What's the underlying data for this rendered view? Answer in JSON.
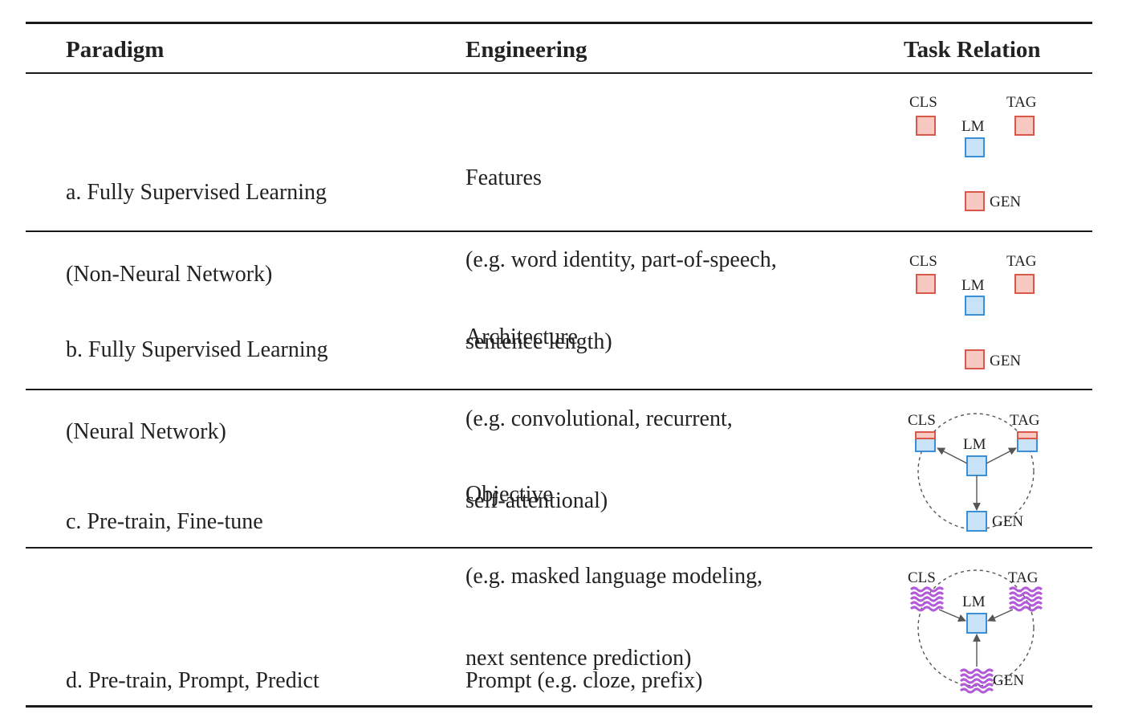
{
  "header": {
    "paradigm": "Paradigm",
    "engineering": "Engineering",
    "task_relation": "Task Relation"
  },
  "rows": [
    {
      "paradigm_line1": "a. Fully Supervised Learning",
      "paradigm_line2": "(Non-Neural Network)",
      "eng_line1": "Features",
      "eng_line2": "(e.g. word identity, part-of-speech,",
      "eng_line3": "sentence length)",
      "diagram": {
        "style": "isolated",
        "cls": "CLS",
        "tag": "TAG",
        "lm": "LM",
        "gen": "GEN"
      }
    },
    {
      "paradigm_line1": "b. Fully Supervised Learning",
      "paradigm_line2": "(Neural Network)",
      "eng_line1": "Architecture",
      "eng_line2": "(e.g. convolutional, recurrent,",
      "eng_line3": "self-attentional)",
      "diagram": {
        "style": "isolated",
        "cls": "CLS",
        "tag": "TAG",
        "lm": "LM",
        "gen": "GEN"
      }
    },
    {
      "paradigm_line1": "c. Pre-train, Fine-tune",
      "eng_line1": "Objective",
      "eng_line2": "(e.g. masked language modeling,",
      "eng_line3": "next sentence prediction)",
      "diagram": {
        "style": "fine-tune",
        "cls": "CLS",
        "tag": "TAG",
        "lm": "LM",
        "gen": "GEN"
      }
    },
    {
      "paradigm_line1": "d. Pre-train, Prompt, Predict",
      "eng_line1": "Prompt (e.g. cloze, prefix)",
      "diagram": {
        "style": "prompt",
        "cls": "CLS",
        "tag": "TAG",
        "lm": "LM",
        "gen": "GEN"
      }
    }
  ],
  "colors": {
    "task_fill": "#f8c9c0",
    "task_stroke": "#d9584a",
    "lm_fill": "#c8e2f7",
    "lm_stroke": "#3a8fd6",
    "prompt": "#b35ad8"
  }
}
